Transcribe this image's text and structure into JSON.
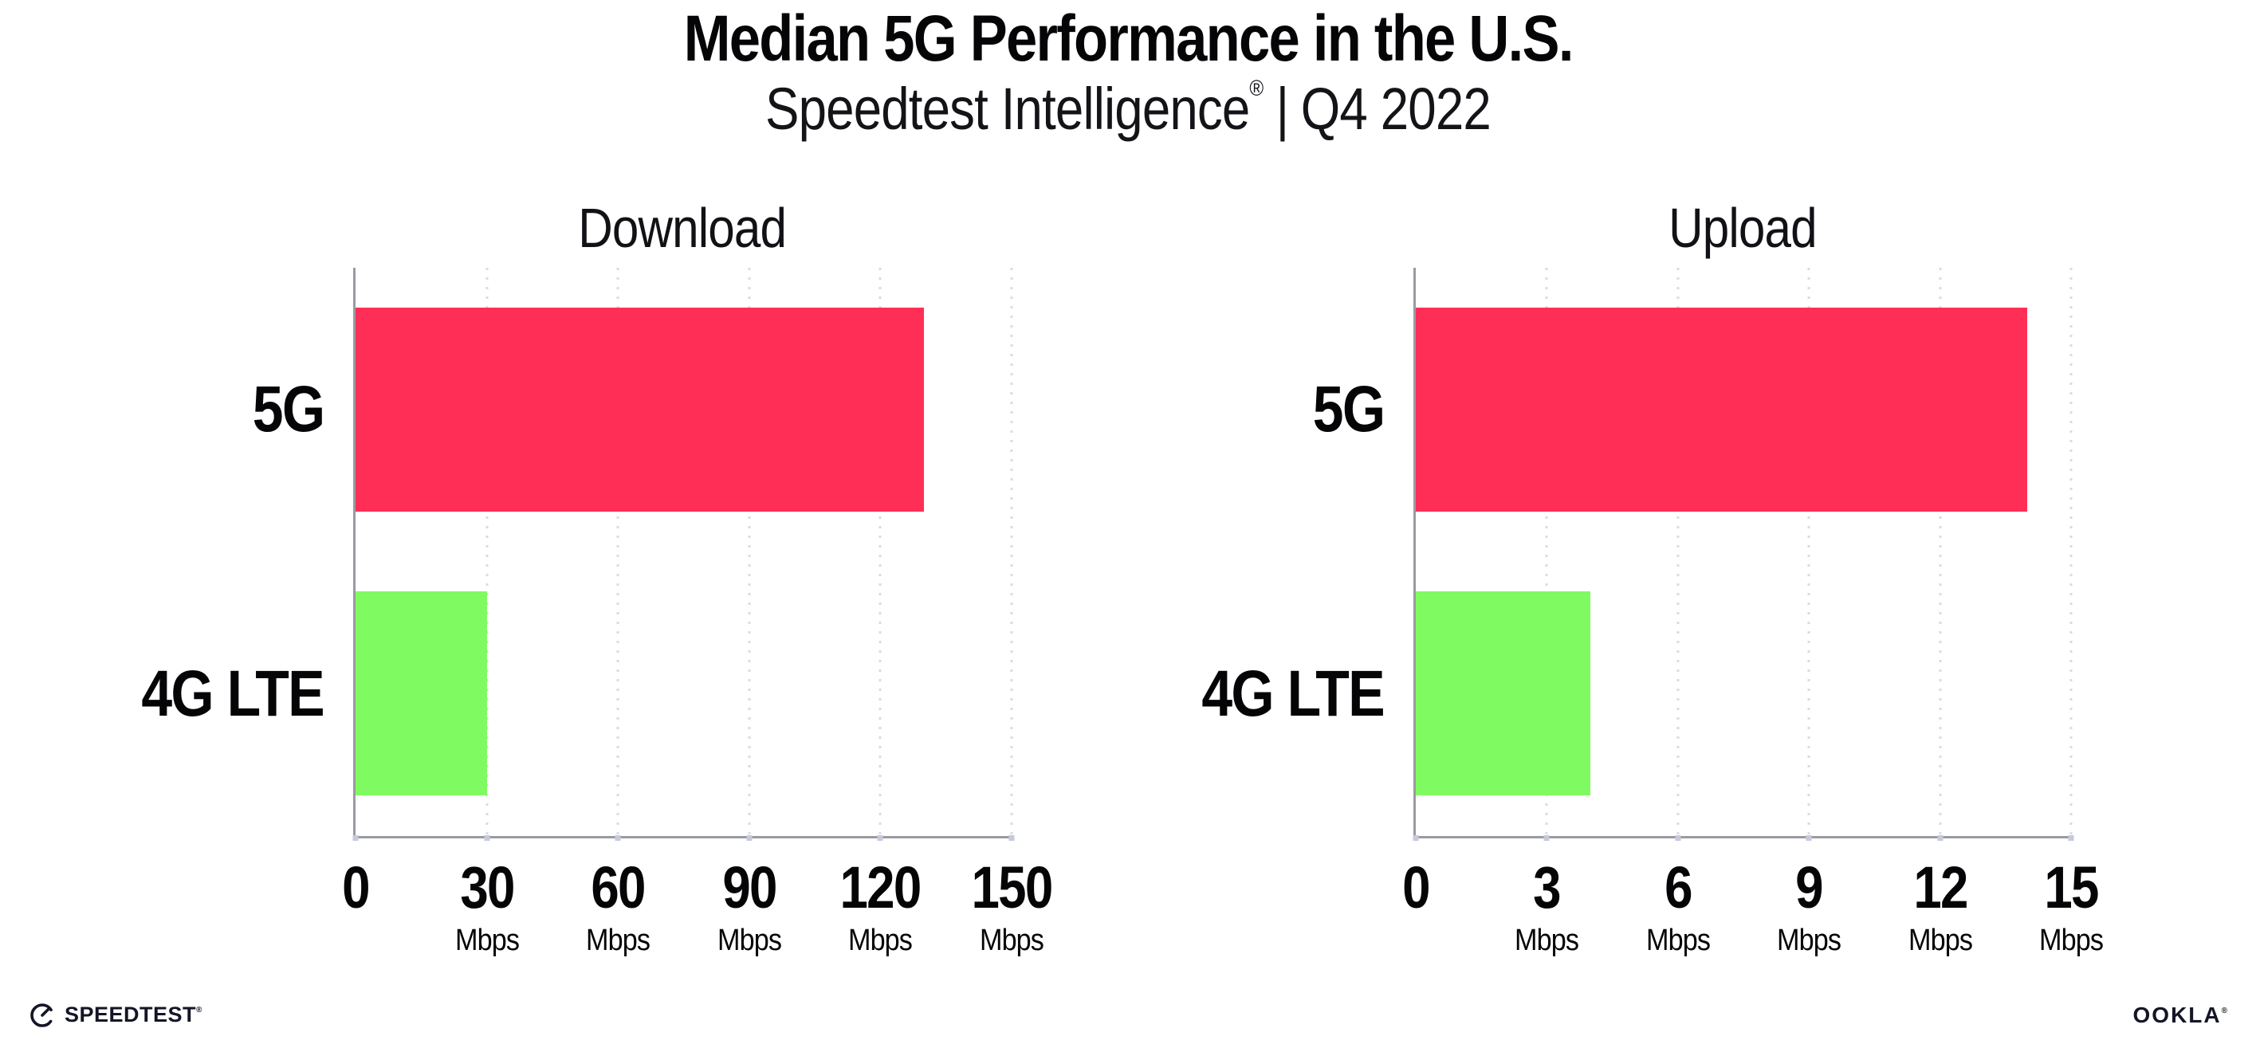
{
  "header": {
    "title": "Median 5G Performance in the U.S.",
    "subtitle_brand": "Speedtest Intelligence",
    "subtitle_reg": "®",
    "subtitle_divider": "|",
    "subtitle_period": "Q4 2022"
  },
  "chart_data": [
    {
      "type": "bar",
      "orientation": "horizontal",
      "title": "Download",
      "categories": [
        "5G",
        "4G LTE"
      ],
      "values": [
        130,
        30
      ],
      "unit": "Mbps",
      "xlim": [
        0,
        150
      ],
      "ticks": [
        0,
        30,
        60,
        90,
        120,
        150
      ],
      "bar_colors": [
        "#FF2E56",
        "#80FA61"
      ],
      "grid": "dotted-vertical-gridlines",
      "legend": "none"
    },
    {
      "type": "bar",
      "orientation": "horizontal",
      "title": "Upload",
      "categories": [
        "5G",
        "4G LTE"
      ],
      "values": [
        14,
        4
      ],
      "unit": "Mbps",
      "xlim": [
        0,
        15
      ],
      "ticks": [
        0,
        3,
        6,
        9,
        12,
        15
      ],
      "bar_colors": [
        "#FF2E56",
        "#80FA61"
      ],
      "grid": "dotted-vertical-gridlines",
      "legend": "none"
    }
  ],
  "colors": {
    "bar_5g": "#FF2E56",
    "bar_4g_lte": "#80FA61",
    "axis_line": "#9a9aa2",
    "gridline": "#d9dbe8",
    "text": "#050507"
  },
  "footer": {
    "speedtest_label": "SPEEDTEST",
    "speedtest_mark": "®",
    "ookla_label": "OOKLA",
    "ookla_mark": "®"
  }
}
